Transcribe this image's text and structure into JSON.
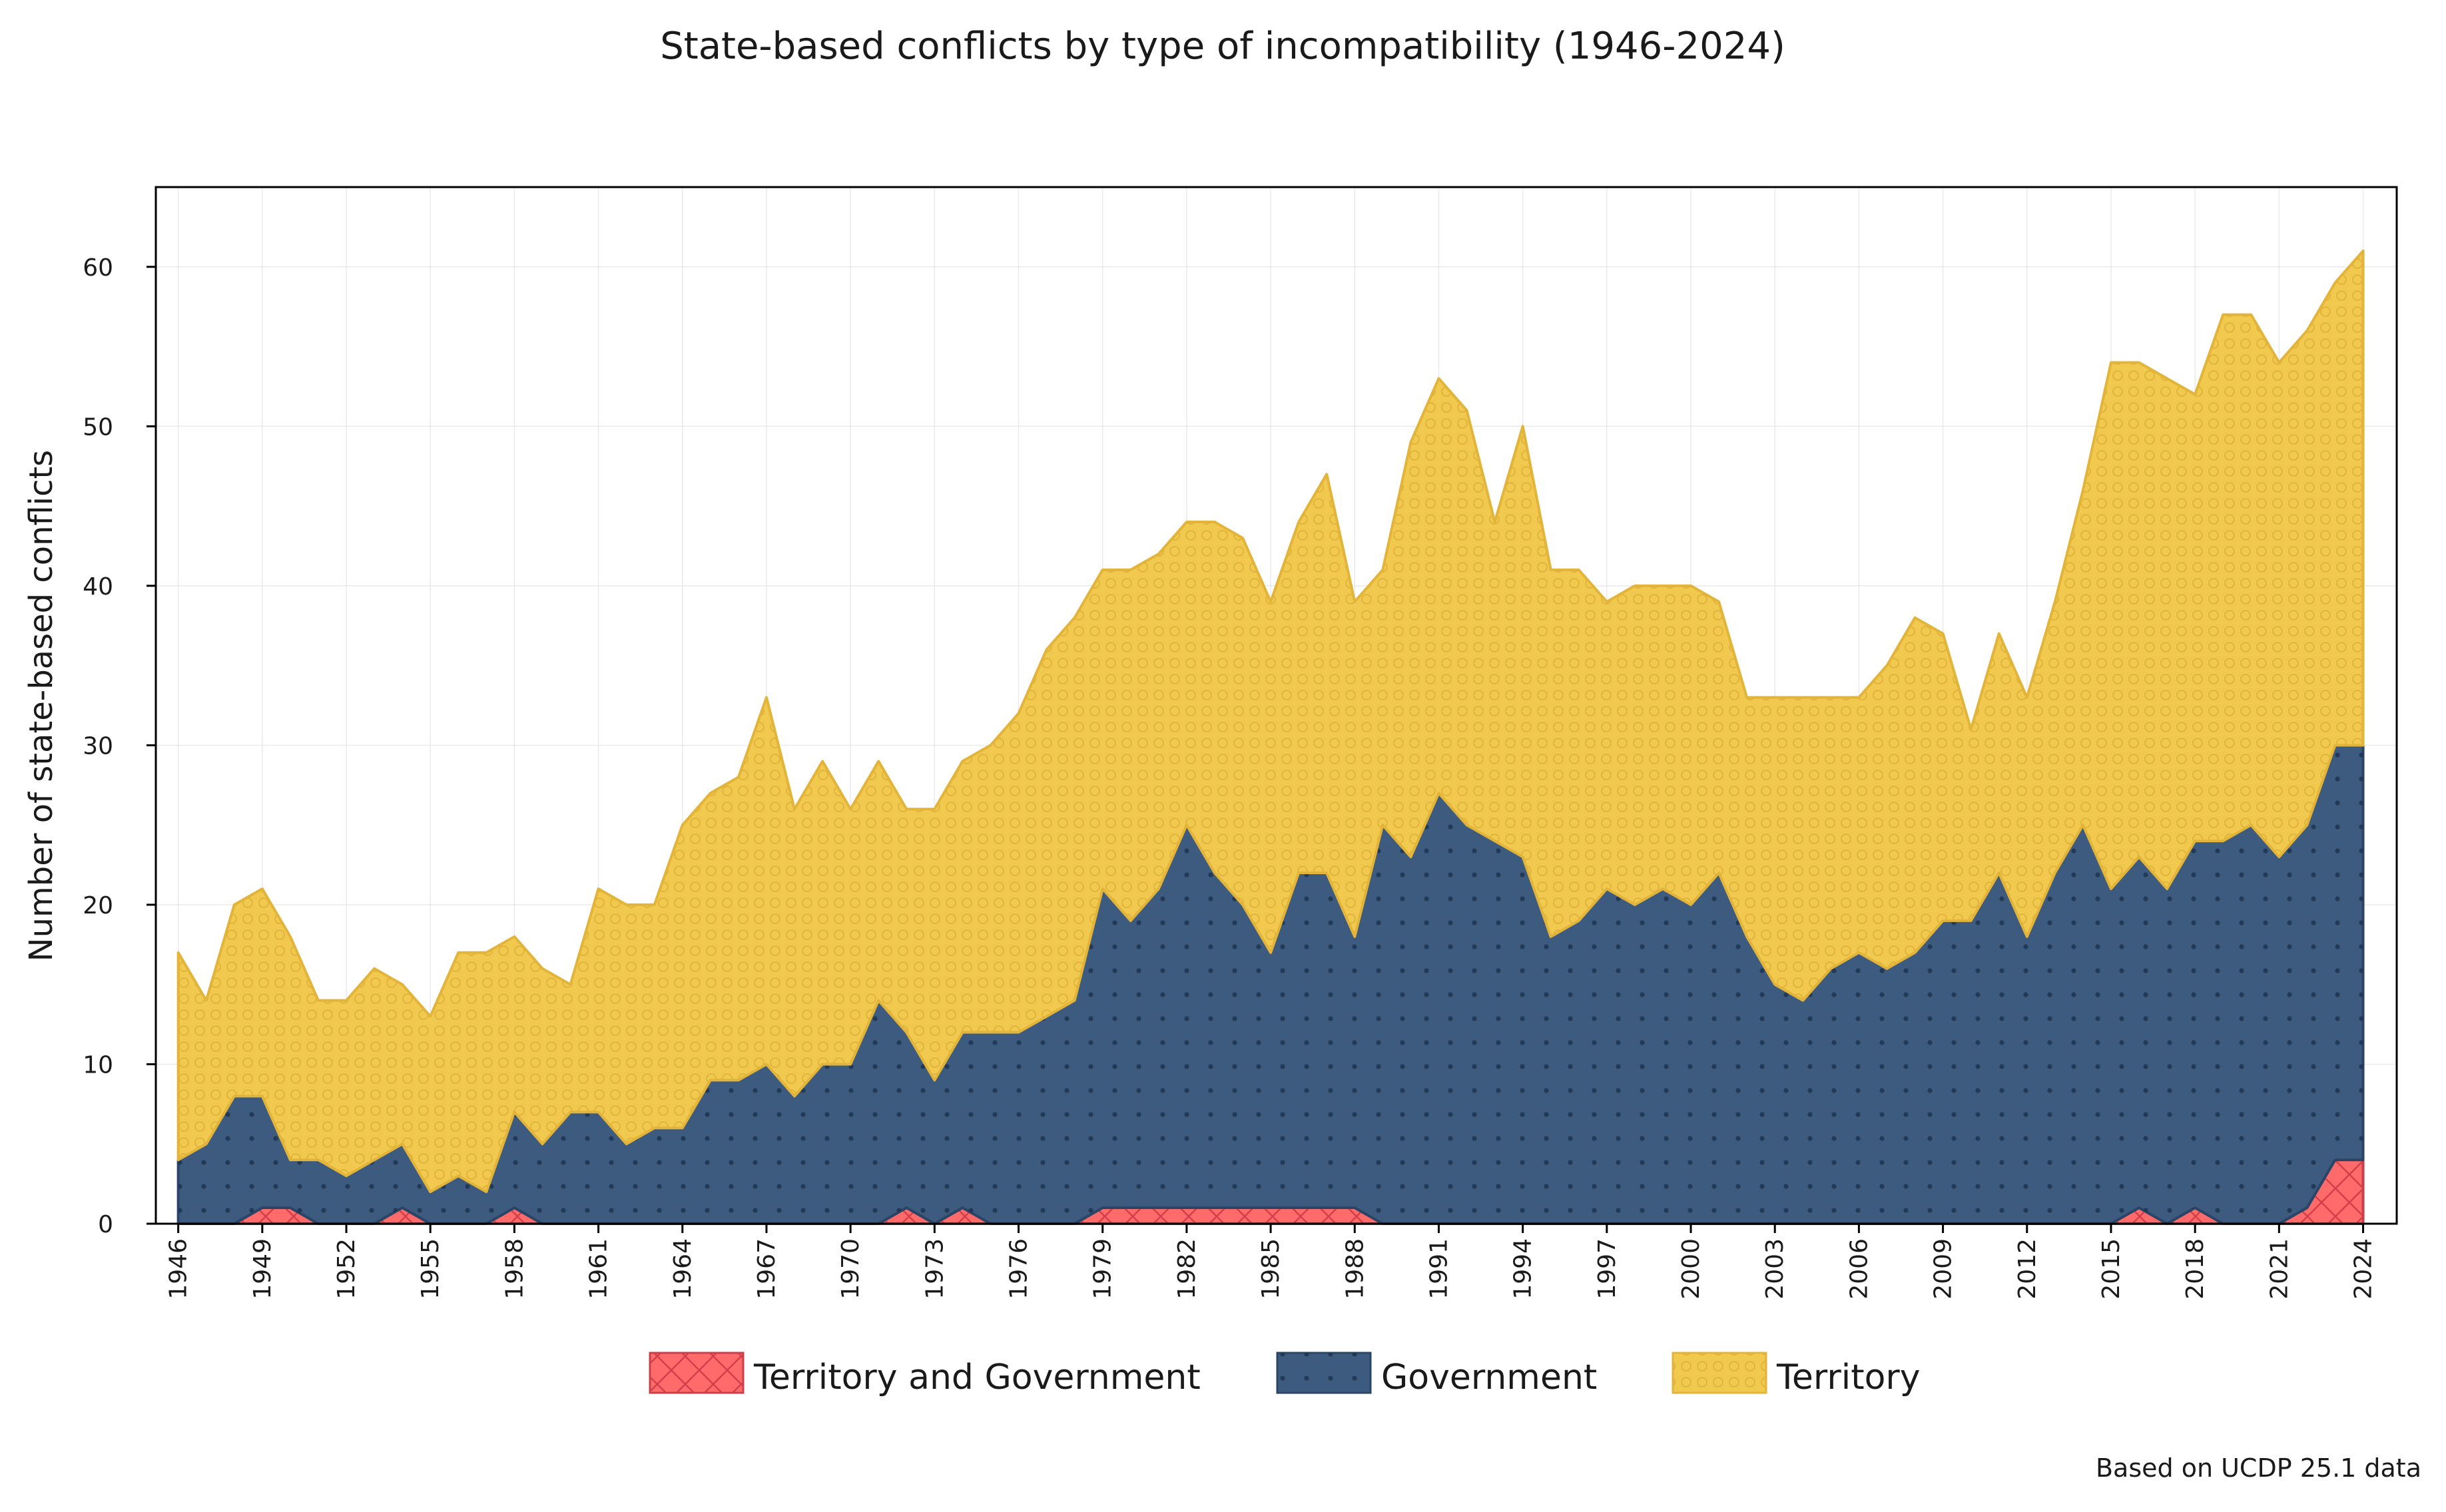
{
  "chart_data": {
    "type": "area",
    "stacked": true,
    "title": "State-based conflicts by type of incompatibility (1946-2024)",
    "xlabel": "",
    "ylabel": "Number of state-based conflicts",
    "xlim": [
      1945.2,
      2025.2
    ],
    "ylim": [
      0,
      65
    ],
    "yticks": [
      0,
      10,
      20,
      30,
      40,
      50,
      60
    ],
    "xticks": [
      "1946",
      "1949",
      "1952",
      "1955",
      "1958",
      "1961",
      "1964",
      "1967",
      "1970",
      "1973",
      "1976",
      "1979",
      "1982",
      "1985",
      "1988",
      "1991",
      "1994",
      "1997",
      "2000",
      "2003",
      "2006",
      "2009",
      "2012",
      "2015",
      "2018",
      "2021",
      "2024"
    ],
    "grid": true,
    "legend_position": "bottom-center",
    "x": [
      1946,
      1947,
      1948,
      1949,
      1950,
      1951,
      1952,
      1953,
      1954,
      1955,
      1956,
      1957,
      1958,
      1959,
      1960,
      1961,
      1962,
      1963,
      1964,
      1965,
      1966,
      1967,
      1968,
      1969,
      1970,
      1971,
      1972,
      1973,
      1974,
      1975,
      1976,
      1977,
      1978,
      1979,
      1980,
      1981,
      1982,
      1983,
      1984,
      1985,
      1986,
      1987,
      1988,
      1989,
      1990,
      1991,
      1992,
      1993,
      1994,
      1995,
      1996,
      1997,
      1998,
      1999,
      2000,
      2001,
      2002,
      2003,
      2004,
      2005,
      2006,
      2007,
      2008,
      2009,
      2010,
      2011,
      2012,
      2013,
      2014,
      2015,
      2016,
      2017,
      2018,
      2019,
      2020,
      2021,
      2022,
      2023,
      2024
    ],
    "series": [
      {
        "name": "Territory and Government",
        "color": "#ff6b6b",
        "edge": "#c8404a",
        "pattern": "crosshatch",
        "values": [
          0,
          0,
          0,
          1,
          1,
          0,
          0,
          0,
          1,
          0,
          0,
          0,
          1,
          0,
          0,
          0,
          0,
          0,
          0,
          0,
          0,
          0,
          0,
          0,
          0,
          0,
          1,
          0,
          1,
          0,
          0,
          0,
          0,
          1,
          1,
          1,
          1,
          1,
          1,
          1,
          1,
          1,
          1,
          0,
          0,
          0,
          0,
          0,
          0,
          0,
          0,
          0,
          0,
          0,
          0,
          0,
          0,
          0,
          0,
          0,
          0,
          0,
          0,
          0,
          0,
          0,
          0,
          0,
          0,
          0,
          1,
          0,
          1,
          0,
          0,
          0,
          1,
          4,
          4
        ]
      },
      {
        "name": "Government",
        "color": "#3d5a7f",
        "edge": "#2b4566",
        "pattern": "dots",
        "values": [
          4,
          5,
          8,
          7,
          3,
          4,
          3,
          4,
          4,
          2,
          3,
          2,
          6,
          5,
          7,
          7,
          5,
          6,
          6,
          9,
          9,
          10,
          8,
          10,
          10,
          14,
          11,
          9,
          11,
          12,
          12,
          13,
          14,
          20,
          18,
          20,
          24,
          21,
          19,
          16,
          21,
          21,
          17,
          25,
          23,
          27,
          25,
          24,
          23,
          18,
          19,
          21,
          20,
          21,
          20,
          22,
          18,
          15,
          14,
          16,
          17,
          16,
          17,
          19,
          19,
          22,
          18,
          22,
          25,
          21,
          22,
          21,
          23,
          24,
          25,
          23,
          24,
          26,
          26
        ]
      },
      {
        "name": "Territory",
        "color": "#f1c94e",
        "edge": "#e2b43a",
        "pattern": "circles",
        "values": [
          13,
          9,
          12,
          13,
          14,
          10,
          11,
          12,
          10,
          11,
          14,
          15,
          11,
          11,
          8,
          14,
          15,
          14,
          19,
          18,
          19,
          23,
          18,
          19,
          16,
          15,
          14,
          17,
          17,
          18,
          20,
          23,
          24,
          20,
          22,
          21,
          19,
          22,
          23,
          22,
          22,
          25,
          21,
          16,
          26,
          26,
          26,
          20,
          27,
          23,
          22,
          18,
          20,
          19,
          20,
          17,
          15,
          18,
          19,
          17,
          16,
          19,
          21,
          18,
          12,
          15,
          15,
          17,
          21,
          33,
          31,
          32,
          28,
          33,
          32,
          31,
          31,
          29,
          31
        ]
      }
    ],
    "caption": "Based on UCDP 25.1 data"
  }
}
